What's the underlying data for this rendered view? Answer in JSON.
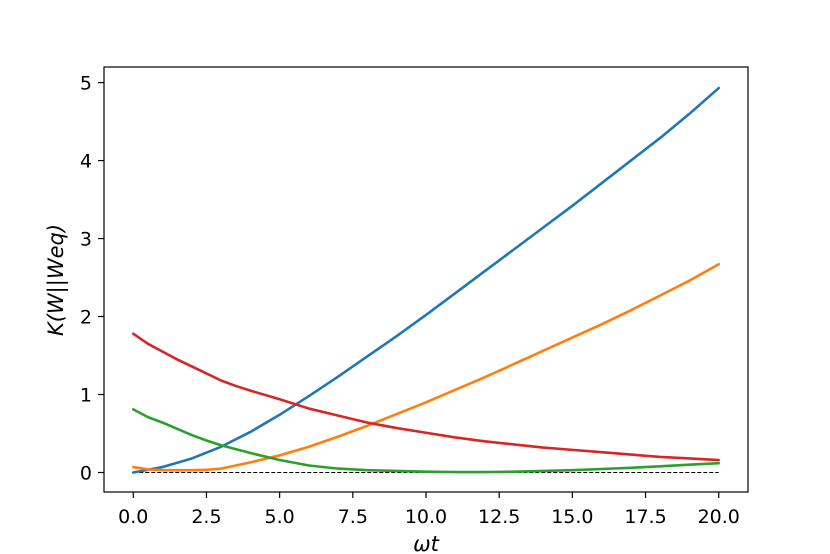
{
  "chart_data": {
    "type": "line",
    "title": "",
    "xlabel": "ωt",
    "ylabel": "K(W||Weq)",
    "xlim": [
      -1.0,
      21.0
    ],
    "ylim": [
      -0.25,
      5.2
    ],
    "xticks": [
      0.0,
      2.5,
      5.0,
      7.5,
      10.0,
      12.5,
      15.0,
      17.5,
      20.0
    ],
    "xtick_labels": [
      "0.0",
      "2.5",
      "5.0",
      "7.5",
      "10.0",
      "12.5",
      "15.0",
      "17.5",
      "20.0"
    ],
    "yticks": [
      0,
      1,
      2,
      3,
      4,
      5
    ],
    "ytick_labels": [
      "0",
      "1",
      "2",
      "3",
      "4",
      "5"
    ],
    "grid": false,
    "legend": "none",
    "reference_line": {
      "y": 0,
      "style": "dashed",
      "color": "#000000"
    },
    "series": [
      {
        "color": "#1f77b4",
        "x": [
          0,
          1,
          2,
          3,
          4,
          5,
          6,
          7,
          8,
          9,
          10,
          11,
          12,
          13,
          14,
          15,
          16,
          17,
          18,
          19,
          20
        ],
        "y": [
          0.0,
          0.07,
          0.18,
          0.33,
          0.52,
          0.74,
          0.98,
          1.23,
          1.49,
          1.75,
          2.02,
          2.3,
          2.58,
          2.86,
          3.14,
          3.42,
          3.71,
          4.0,
          4.29,
          4.6,
          4.93
        ]
      },
      {
        "color": "#ff7f0e",
        "x": [
          0,
          0.5,
          1,
          1.5,
          2,
          2.5,
          3,
          3.5,
          4,
          5,
          6,
          7,
          8,
          9,
          10,
          11,
          12,
          13,
          14,
          15,
          16,
          17,
          18,
          19,
          20
        ],
        "y": [
          0.07,
          0.04,
          0.03,
          0.03,
          0.03,
          0.035,
          0.05,
          0.09,
          0.13,
          0.22,
          0.33,
          0.46,
          0.6,
          0.75,
          0.9,
          1.06,
          1.22,
          1.39,
          1.56,
          1.73,
          1.9,
          2.08,
          2.27,
          2.46,
          2.67
        ]
      },
      {
        "color": "#2ca02c",
        "x": [
          0,
          0.5,
          1,
          1.5,
          2,
          2.5,
          3,
          3.5,
          4,
          5,
          6,
          7,
          8,
          9,
          10,
          11,
          12,
          13,
          14,
          15,
          16,
          17,
          18,
          19,
          20
        ],
        "y": [
          0.81,
          0.71,
          0.64,
          0.56,
          0.48,
          0.41,
          0.35,
          0.3,
          0.25,
          0.16,
          0.09,
          0.05,
          0.03,
          0.02,
          0.01,
          0.005,
          0.005,
          0.01,
          0.02,
          0.03,
          0.045,
          0.06,
          0.08,
          0.1,
          0.12
        ]
      },
      {
        "color": "#d62728",
        "x": [
          0,
          0.5,
          1,
          1.5,
          2,
          2.5,
          3,
          3.5,
          4,
          5,
          6,
          7,
          8,
          9,
          10,
          11,
          12,
          13,
          14,
          15,
          16,
          17,
          18,
          19,
          20
        ],
        "y": [
          1.78,
          1.65,
          1.55,
          1.45,
          1.36,
          1.27,
          1.18,
          1.11,
          1.05,
          0.94,
          0.82,
          0.73,
          0.64,
          0.57,
          0.51,
          0.45,
          0.4,
          0.36,
          0.32,
          0.29,
          0.26,
          0.23,
          0.2,
          0.18,
          0.16
        ]
      }
    ]
  }
}
